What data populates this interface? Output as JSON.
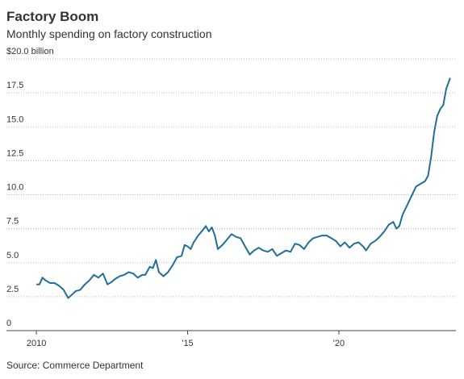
{
  "chart_data": {
    "type": "line",
    "title": "Factory Boom",
    "subtitle": "Monthly spending on factory construction",
    "source": "Source: Commerce Department",
    "color": "#1f6f98",
    "grid": true,
    "x": [
      2010.0,
      2010.1,
      2010.2,
      2010.3,
      2010.45,
      2010.6,
      2010.75,
      2010.9,
      2011.05,
      2011.15,
      2011.3,
      2011.45,
      2011.6,
      2011.75,
      2011.9,
      2012.05,
      2012.2,
      2012.35,
      2012.5,
      2012.6,
      2012.75,
      2012.9,
      2013.05,
      2013.2,
      2013.35,
      2013.5,
      2013.6,
      2013.75,
      2013.85,
      2013.95,
      2014.05,
      2014.2,
      2014.35,
      2014.5,
      2014.65,
      2014.8,
      2014.9,
      2015.0,
      2015.1,
      2015.2,
      2015.35,
      2015.5,
      2015.6,
      2015.7,
      2015.8,
      2015.9,
      2016.0,
      2016.15,
      2016.3,
      2016.45,
      2016.6,
      2016.75,
      2016.9,
      2017.05,
      2017.2,
      2017.35,
      2017.5,
      2017.65,
      2017.8,
      2017.95,
      2018.1,
      2018.25,
      2018.4,
      2018.55,
      2018.7,
      2018.85,
      2019.0,
      2019.15,
      2019.3,
      2019.45,
      2019.6,
      2019.75,
      2019.9,
      2020.05,
      2020.2,
      2020.35,
      2020.5,
      2020.65,
      2020.8,
      2020.9,
      2021.05,
      2021.2,
      2021.35,
      2021.5,
      2021.65,
      2021.8,
      2021.9,
      2022.0,
      2022.1,
      2022.25,
      2022.4,
      2022.55,
      2022.7,
      2022.85,
      2022.95,
      2023.05,
      2023.15,
      2023.25,
      2023.35,
      2023.45,
      2023.55,
      2023.68
    ],
    "values": [
      3.4,
      3.4,
      3.9,
      3.7,
      3.5,
      3.5,
      3.3,
      3.0,
      2.4,
      2.6,
      2.9,
      3.0,
      3.4,
      3.7,
      4.1,
      3.9,
      4.2,
      3.4,
      3.6,
      3.8,
      4.0,
      4.1,
      4.3,
      4.2,
      3.9,
      4.1,
      4.1,
      4.7,
      4.6,
      5.2,
      4.3,
      4.0,
      4.3,
      4.8,
      5.4,
      5.5,
      6.3,
      6.2,
      6.0,
      6.5,
      7.0,
      7.4,
      7.7,
      7.3,
      7.6,
      7.0,
      6.0,
      6.3,
      6.7,
      7.1,
      6.9,
      6.8,
      6.2,
      5.6,
      5.9,
      6.1,
      5.9,
      5.8,
      6.0,
      5.5,
      5.7,
      5.9,
      5.8,
      6.4,
      6.3,
      6.0,
      6.5,
      6.8,
      6.9,
      7.0,
      7.0,
      6.8,
      6.6,
      6.2,
      6.5,
      6.1,
      6.4,
      6.5,
      6.2,
      5.9,
      6.4,
      6.6,
      6.9,
      7.3,
      7.8,
      8.0,
      7.5,
      7.7,
      8.5,
      9.2,
      9.9,
      10.6,
      10.8,
      11.0,
      11.4,
      12.8,
      14.6,
      15.8,
      16.3,
      16.6,
      17.8,
      18.6
    ],
    "xlim": [
      2009.01,
      2023.87
    ],
    "xticks": [
      2010,
      {
        "value": 2015,
        "label": "'15"
      },
      {
        "value": 2020,
        "label": "'20"
      }
    ],
    "ylim": [
      0,
      20
    ],
    "yticks": [
      0,
      2.5,
      {
        "value": 5,
        "label": "5.0"
      },
      7.5,
      {
        "value": 10,
        "label": "10.0"
      },
      12.5,
      {
        "value": 15,
        "label": "15.0"
      },
      17.5,
      {
        "value": 20,
        "label": "$20.0 billion"
      }
    ]
  }
}
